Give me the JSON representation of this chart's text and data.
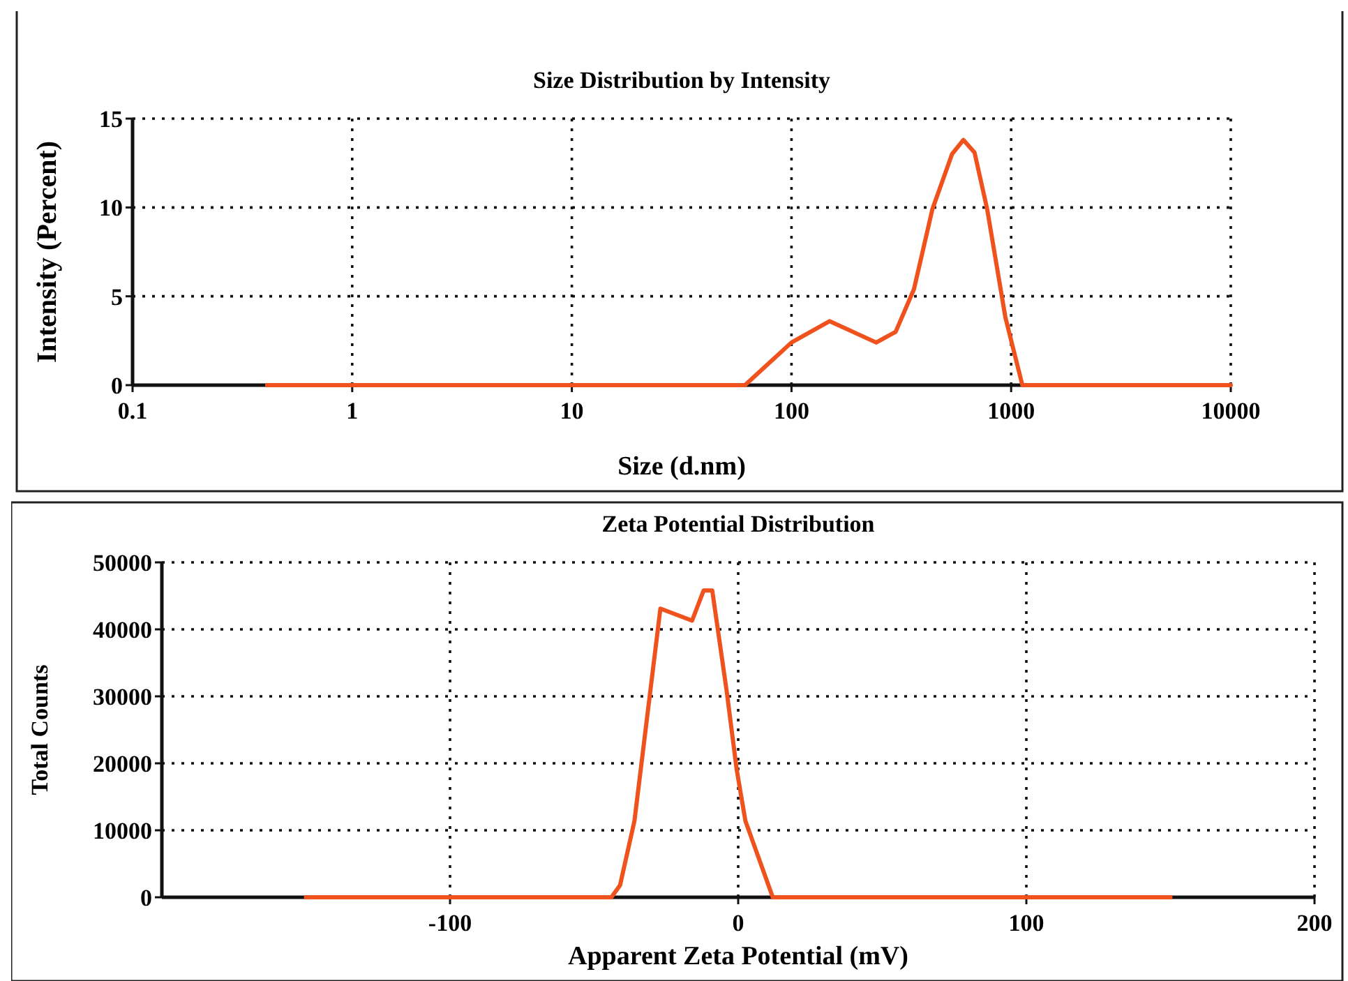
{
  "chart_data": [
    {
      "type": "line",
      "title": "Size Distribution by Intensity",
      "xlabel": "Size (d.nm)",
      "ylabel": "Intensity (Percent)",
      "log": "x",
      "xlim": [
        0.1,
        10000
      ],
      "xticks": [
        0.1,
        1,
        10,
        100,
        1000,
        10000
      ],
      "ylim": [
        0,
        15
      ],
      "yticks": [
        0,
        5,
        10,
        15
      ],
      "grid": true,
      "marker": "none",
      "line_style": "solid",
      "series": [
        {
          "color": "#f0521e",
          "x": [
            0.41,
            61.4,
            100,
            149,
            243,
            298,
            361,
            438,
            538,
            606,
            681,
            778,
            942,
            1125,
            10000
          ],
          "values": [
            0,
            0,
            2.4,
            3.6,
            2.4,
            3.0,
            5.4,
            9.9,
            13.0,
            13.8,
            13.1,
            9.9,
            3.8,
            0,
            0
          ]
        }
      ]
    },
    {
      "type": "line",
      "title": "Zeta Potential Distribution",
      "xlabel": "Apparent Zeta Potential (mV)",
      "ylabel": "Total Counts",
      "xlim": [
        -200,
        200
      ],
      "xticks": [
        -100,
        0,
        100,
        200
      ],
      "ylim": [
        0,
        50000
      ],
      "yticks": [
        0,
        10000,
        20000,
        30000,
        40000,
        50000
      ],
      "grid": true,
      "marker": "none",
      "line_style": "solid",
      "series": [
        {
          "color": "#f0521e",
          "x": [
            -150,
            -44,
            -41,
            -36,
            -27,
            -16,
            -12,
            -9,
            -4,
            -0.5,
            2.5,
            12,
            150
          ],
          "values": [
            0,
            0,
            1800,
            11400,
            43100,
            41300,
            45800,
            45800,
            30800,
            19000,
            11400,
            0,
            0
          ]
        }
      ]
    }
  ]
}
